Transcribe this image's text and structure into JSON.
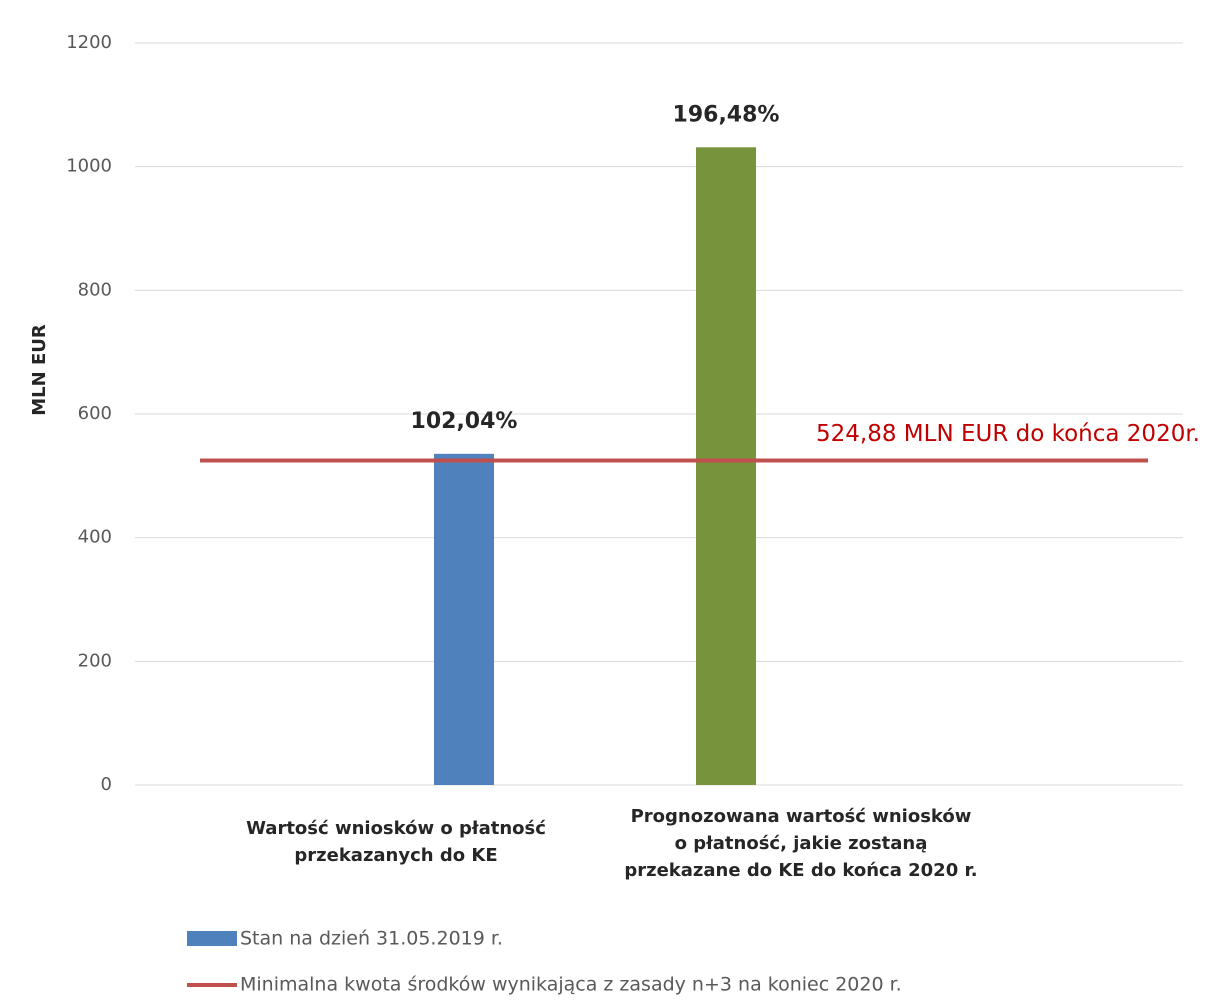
{
  "chart_data": {
    "type": "bar",
    "ylabel": "MLN  EUR",
    "categories": [
      "Wartość wniosków o płatność\nprzekazanych do KE",
      "Prognozowana wartość wniosków\no płatność, jakie zostaną\nprzekazane do KE do końca 2020 r."
    ],
    "series": [
      {
        "name": "Stan na dzień 31.05.2019 r.",
        "color": "#4f81bd",
        "colors": [
          "#4f81bd",
          "#77933c"
        ],
        "values": [
          535.6,
          1031.3
        ]
      }
    ],
    "annotations": [
      "102,04%",
      "196,48%"
    ],
    "reference_line": {
      "name": "Minimalna kwota środków wynikająca z zasady n+3 na koniec 2020 r.",
      "value": 524.88,
      "label": "524,88 MLN EUR do końca 2020r.",
      "color": "#c0504d",
      "label_color": "#c00000"
    },
    "ylim": [
      0,
      1200
    ],
    "yticks": [
      0,
      200,
      400,
      600,
      800,
      1000,
      1200
    ],
    "grid": true
  }
}
